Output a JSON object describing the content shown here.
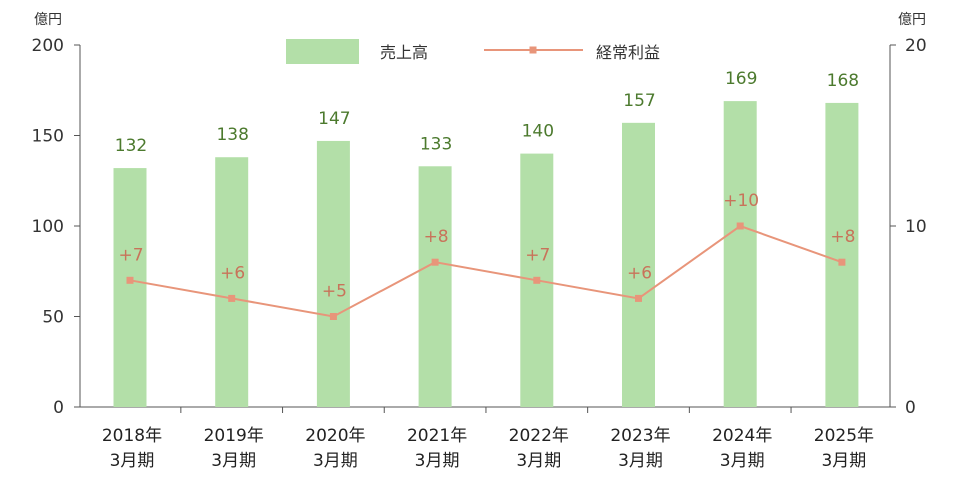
{
  "chart_data": {
    "type": "bar",
    "categories": [
      [
        "2018年",
        "3月期"
      ],
      [
        "2019年",
        "3月期"
      ],
      [
        "2020年",
        "3月期"
      ],
      [
        "2021年",
        "3月期"
      ],
      [
        "2022年",
        "3月期"
      ],
      [
        "2023年",
        "3月期"
      ],
      [
        "2024年",
        "3月期"
      ],
      [
        "2025年",
        "3月期"
      ]
    ],
    "series": [
      {
        "name": "売上高",
        "type": "bar",
        "axis": "left",
        "color": "#b3dfa8",
        "label_color": "#4c7a2e",
        "values": [
          132,
          138,
          147,
          133,
          140,
          157,
          169,
          168
        ],
        "labels": [
          "132",
          "138",
          "147",
          "133",
          "140",
          "157",
          "169",
          "168"
        ]
      },
      {
        "name": "経常利益",
        "type": "line",
        "axis": "right",
        "color": "#e8957a",
        "label_color": "#c8735a",
        "values": [
          7,
          6,
          5,
          8,
          7,
          6,
          10,
          8
        ],
        "labels": [
          "+7",
          "+6",
          "+5",
          "+8",
          "+7",
          "+6",
          "+10",
          "+8"
        ]
      }
    ],
    "left_axis": {
      "unit": "億円",
      "ylim": [
        0,
        200
      ],
      "ticks": [
        0,
        50,
        100,
        150,
        200
      ],
      "tick_labels": [
        "0",
        "50",
        "100",
        "150",
        "200"
      ]
    },
    "right_axis": {
      "unit": "億円",
      "ylim": [
        0,
        20
      ],
      "ticks": [
        0,
        10,
        20
      ],
      "tick_labels": [
        "0",
        "10",
        "20"
      ]
    },
    "grid": false,
    "legend_position": "top-center",
    "title": ""
  }
}
